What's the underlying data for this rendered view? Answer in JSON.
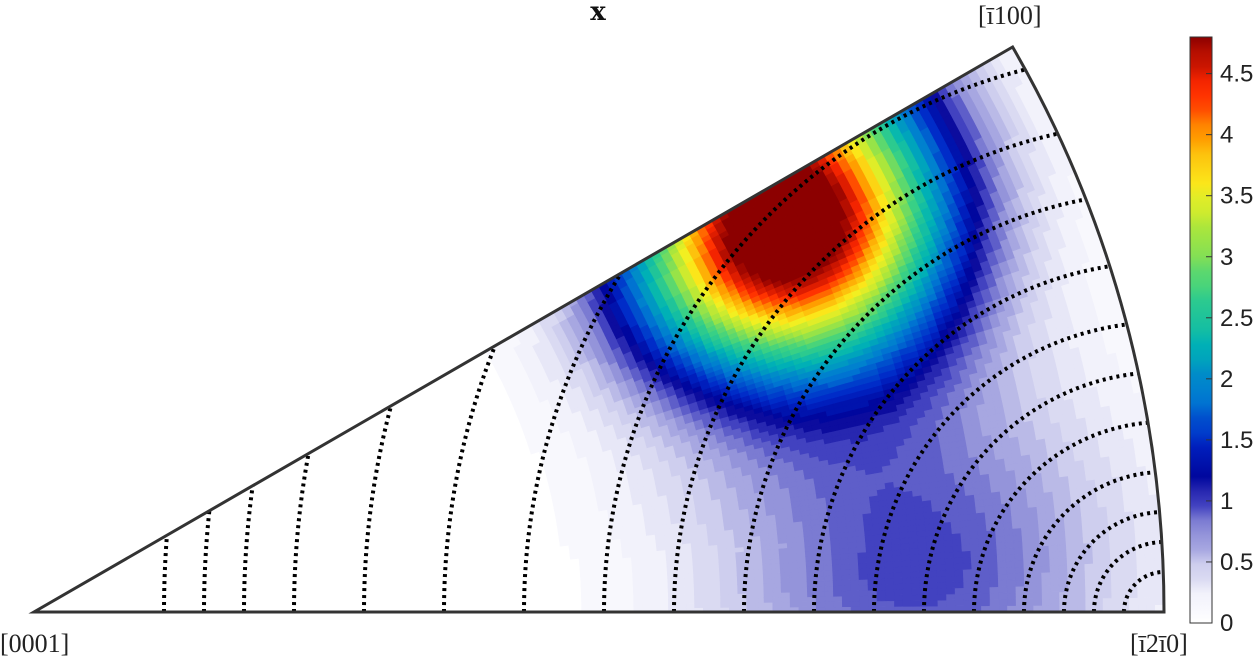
{
  "chart_data": {
    "type": "heatmap",
    "title": "x",
    "corners": {
      "origin": "[0001]",
      "right": "[ī2ī0]",
      "top": "[ī100]"
    },
    "colorbar": {
      "min": 0,
      "max": 4.8,
      "colormap": "white-blue-jet",
      "ticks": [
        0,
        0.5,
        1,
        1.5,
        2,
        2.5,
        3,
        3.5,
        4,
        4.5
      ],
      "tick_labels": [
        "0",
        "0.5",
        "1",
        "1.5",
        "2",
        "2.5",
        "3",
        "3.5",
        "4",
        "4.5"
      ]
    },
    "sector_angle_deg": 30,
    "peak": {
      "value": 4.8,
      "theta_deg": 27,
      "radial_fraction": 0.75
    },
    "secondary_lobe": {
      "value": 1.0,
      "theta_deg": 3,
      "radial_fraction": 0.78
    },
    "contour_levels": 14,
    "grid": "dotted"
  }
}
